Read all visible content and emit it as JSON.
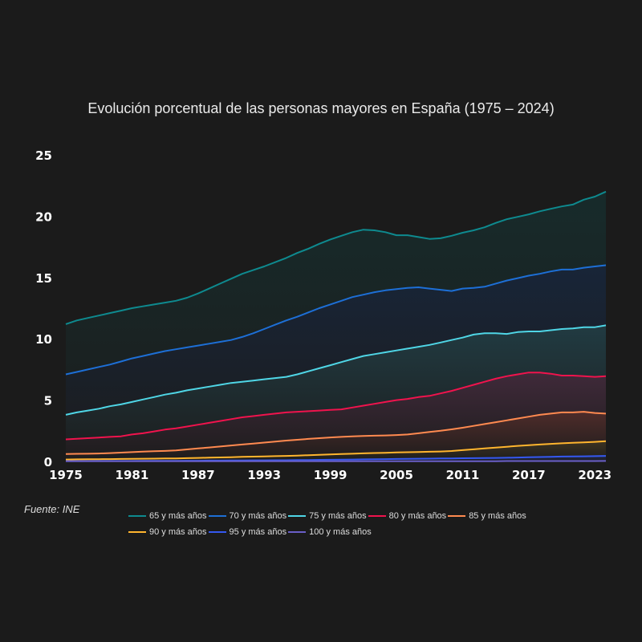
{
  "chart_data": {
    "type": "area",
    "title": "Evolución porcentual de las personas mayores en España (1975 – 2024)",
    "source": "Fuente: INE",
    "xlim": [
      1975,
      2024
    ],
    "ylim": [
      0,
      25
    ],
    "x_ticks": [
      "1975",
      "1981",
      "1987",
      "1993",
      "1999",
      "2005",
      "2011",
      "2017",
      "2023"
    ],
    "y_ticks": [
      "0",
      "5",
      "10",
      "15",
      "20",
      "25"
    ],
    "grid": false,
    "legend_position": "bottom",
    "x": [
      1975,
      1976,
      1977,
      1978,
      1979,
      1980,
      1981,
      1982,
      1983,
      1984,
      1985,
      1986,
      1987,
      1988,
      1989,
      1990,
      1991,
      1992,
      1993,
      1994,
      1995,
      1996,
      1997,
      1998,
      1999,
      2000,
      2001,
      2002,
      2003,
      2004,
      2005,
      2006,
      2007,
      2008,
      2009,
      2010,
      2011,
      2012,
      2013,
      2014,
      2015,
      2016,
      2017,
      2018,
      2019,
      2020,
      2021,
      2022,
      2023,
      2024
    ],
    "series": [
      {
        "name": "65 y más años",
        "color": "#0e8a8f",
        "fill": "#172b2b",
        "values": [
          11.2,
          11.5,
          11.7,
          11.9,
          12.1,
          12.3,
          12.5,
          12.65,
          12.8,
          12.95,
          13.1,
          13.35,
          13.7,
          14.1,
          14.5,
          14.9,
          15.3,
          15.6,
          15.9,
          16.25,
          16.6,
          17.0,
          17.35,
          17.75,
          18.1,
          18.4,
          18.7,
          18.9,
          18.85,
          18.7,
          18.45,
          18.45,
          18.3,
          18.15,
          18.2,
          18.4,
          18.65,
          18.85,
          19.1,
          19.45,
          19.75,
          19.95,
          20.15,
          20.4,
          20.6,
          20.8,
          20.95,
          21.35,
          21.6,
          22.0
        ]
      },
      {
        "name": "70 y más años",
        "color": "#1d6fd6",
        "fill": "#182538",
        "values": [
          7.1,
          7.3,
          7.5,
          7.7,
          7.9,
          8.15,
          8.4,
          8.6,
          8.8,
          9.0,
          9.15,
          9.3,
          9.45,
          9.6,
          9.75,
          9.9,
          10.15,
          10.45,
          10.8,
          11.15,
          11.5,
          11.8,
          12.15,
          12.5,
          12.8,
          13.1,
          13.4,
          13.6,
          13.8,
          13.95,
          14.05,
          14.15,
          14.2,
          14.1,
          14.0,
          13.9,
          14.1,
          14.15,
          14.25,
          14.5,
          14.75,
          14.95,
          15.15,
          15.3,
          15.5,
          15.65,
          15.65,
          15.8,
          15.9,
          16.0
        ]
      },
      {
        "name": "75 y más años",
        "color": "#4fd6e6",
        "fill": "#213b42",
        "values": [
          3.8,
          4.0,
          4.15,
          4.3,
          4.5,
          4.65,
          4.85,
          5.05,
          5.25,
          5.45,
          5.6,
          5.8,
          5.95,
          6.1,
          6.25,
          6.4,
          6.5,
          6.6,
          6.7,
          6.8,
          6.9,
          7.1,
          7.35,
          7.6,
          7.85,
          8.1,
          8.35,
          8.6,
          8.75,
          8.9,
          9.05,
          9.2,
          9.35,
          9.5,
          9.7,
          9.9,
          10.1,
          10.35,
          10.45,
          10.45,
          10.4,
          10.55,
          10.6,
          10.6,
          10.7,
          10.8,
          10.85,
          10.95,
          10.95,
          11.1
        ]
      },
      {
        "name": "80 y más años",
        "color": "#f0134d",
        "fill": "#402a3a",
        "values": [
          1.8,
          1.85,
          1.9,
          1.95,
          2.0,
          2.05,
          2.2,
          2.3,
          2.45,
          2.6,
          2.7,
          2.85,
          3.0,
          3.15,
          3.3,
          3.45,
          3.6,
          3.7,
          3.8,
          3.9,
          4.0,
          4.05,
          4.1,
          4.15,
          4.2,
          4.25,
          4.4,
          4.55,
          4.7,
          4.85,
          5.0,
          5.1,
          5.25,
          5.35,
          5.55,
          5.75,
          6.0,
          6.25,
          6.5,
          6.75,
          6.95,
          7.1,
          7.25,
          7.25,
          7.15,
          7.0,
          7.0,
          6.95,
          6.9,
          6.95
        ]
      },
      {
        "name": "85 y más años",
        "color": "#ff8a50",
        "fill": "#4e2c2a",
        "values": [
          0.6,
          0.62,
          0.63,
          0.65,
          0.68,
          0.72,
          0.76,
          0.8,
          0.83,
          0.86,
          0.9,
          0.98,
          1.06,
          1.14,
          1.22,
          1.3,
          1.38,
          1.46,
          1.54,
          1.62,
          1.7,
          1.77,
          1.84,
          1.9,
          1.96,
          2.0,
          2.04,
          2.08,
          2.1,
          2.12,
          2.15,
          2.2,
          2.3,
          2.4,
          2.5,
          2.62,
          2.75,
          2.9,
          3.05,
          3.2,
          3.35,
          3.5,
          3.65,
          3.8,
          3.9,
          4.0,
          4.0,
          4.05,
          3.95,
          3.9
        ]
      },
      {
        "name": "90 y más años",
        "color": "#ffb52e",
        "fill": "#3d3322",
        "values": [
          0.16,
          0.17,
          0.18,
          0.18,
          0.19,
          0.2,
          0.21,
          0.22,
          0.23,
          0.24,
          0.25,
          0.27,
          0.29,
          0.31,
          0.33,
          0.35,
          0.37,
          0.39,
          0.41,
          0.43,
          0.45,
          0.48,
          0.51,
          0.54,
          0.57,
          0.6,
          0.63,
          0.66,
          0.69,
          0.71,
          0.73,
          0.75,
          0.77,
          0.79,
          0.81,
          0.85,
          0.92,
          0.99,
          1.06,
          1.13,
          1.2,
          1.27,
          1.33,
          1.38,
          1.43,
          1.48,
          1.52,
          1.56,
          1.6,
          1.65
        ]
      },
      {
        "name": "95 y más años",
        "color": "#3558f0",
        "fill": "#222a4a",
        "values": [
          0.03,
          0.03,
          0.03,
          0.04,
          0.04,
          0.04,
          0.04,
          0.05,
          0.05,
          0.05,
          0.05,
          0.06,
          0.06,
          0.07,
          0.07,
          0.08,
          0.08,
          0.09,
          0.09,
          0.1,
          0.1,
          0.11,
          0.12,
          0.13,
          0.14,
          0.15,
          0.16,
          0.17,
          0.18,
          0.19,
          0.2,
          0.21,
          0.22,
          0.23,
          0.24,
          0.25,
          0.26,
          0.27,
          0.28,
          0.29,
          0.3,
          0.32,
          0.34,
          0.36,
          0.38,
          0.4,
          0.41,
          0.42,
          0.43,
          0.45
        ]
      },
      {
        "name": "100 y más años",
        "color": "#6a5fc8",
        "fill": "#2a2840",
        "values": [
          0.01,
          0.01,
          0.01,
          0.01,
          0.01,
          0.01,
          0.01,
          0.01,
          0.01,
          0.01,
          0.01,
          0.01,
          0.01,
          0.01,
          0.01,
          0.01,
          0.01,
          0.01,
          0.01,
          0.01,
          0.01,
          0.01,
          0.01,
          0.01,
          0.01,
          0.01,
          0.02,
          0.02,
          0.02,
          0.02,
          0.02,
          0.02,
          0.02,
          0.02,
          0.02,
          0.02,
          0.02,
          0.02,
          0.02,
          0.02,
          0.03,
          0.03,
          0.03,
          0.03,
          0.03,
          0.03,
          0.03,
          0.03,
          0.03,
          0.04
        ]
      }
    ]
  }
}
